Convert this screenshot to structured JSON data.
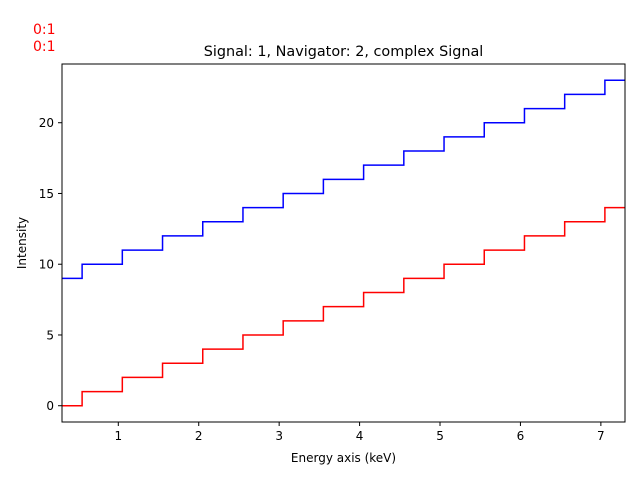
{
  "indices": [
    {
      "text": "0:1",
      "color": "#ff0000"
    },
    {
      "text": "0:1",
      "color": "#ff0000"
    }
  ],
  "chart_data": {
    "type": "line",
    "drawstyle": "steps-mid",
    "title": "Signal: 1, Navigator: 2, complex Signal",
    "xlabel": "Energy axis (keV)",
    "ylabel": "Intensity",
    "xlim": [
      0.3,
      7.3
    ],
    "ylim": [
      -1.15,
      24.15
    ],
    "xticks": [
      1,
      2,
      3,
      4,
      5,
      6,
      7
    ],
    "yticks": [
      0,
      5,
      10,
      15,
      20
    ],
    "x": [
      0.3,
      0.8,
      1.3,
      1.8,
      2.3,
      2.8,
      3.3,
      3.8,
      4.3,
      4.8,
      5.3,
      5.8,
      6.3,
      6.8,
      7.3
    ],
    "series": [
      {
        "color": "#ff0000",
        "values": [
          0,
          1,
          2,
          3,
          4,
          5,
          6,
          7,
          8,
          9,
          10,
          11,
          12,
          13,
          14
        ]
      },
      {
        "color": "#0000ff",
        "values": [
          9,
          10,
          11,
          12,
          13,
          14,
          15,
          16,
          17,
          18,
          19,
          20,
          21,
          22,
          23
        ]
      }
    ],
    "grid": false
  }
}
